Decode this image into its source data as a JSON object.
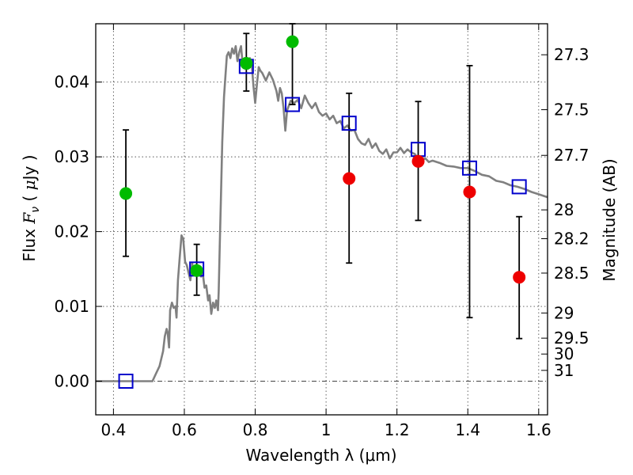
{
  "chart_data": {
    "type": "scatter",
    "title": "",
    "xlabel": "Wavelength  λ (μm)",
    "ylabel": "Flux  F_ν  ( μJy )",
    "y2label": "Magnitude (AB)",
    "xlim": [
      0.35,
      1.625
    ],
    "ylim": [
      -0.0045,
      0.0478
    ],
    "grid": true,
    "x_ticks": [
      {
        "v": 0.4,
        "label": "0.4"
      },
      {
        "v": 0.6,
        "label": "0.6"
      },
      {
        "v": 0.8,
        "label": "0.8"
      },
      {
        "v": 1.0,
        "label": "1"
      },
      {
        "v": 1.2,
        "label": "1.2"
      },
      {
        "v": 1.4,
        "label": "1.4"
      },
      {
        "v": 1.6,
        "label": "1.6"
      }
    ],
    "y_ticks": [
      {
        "v": 0.0,
        "label": "0.00"
      },
      {
        "v": 0.01,
        "label": "0.01"
      },
      {
        "v": 0.02,
        "label": "0.02"
      },
      {
        "v": 0.03,
        "label": "0.03"
      },
      {
        "v": 0.04,
        "label": "0.04"
      }
    ],
    "mag_ticks": [
      {
        "mag": 27.3,
        "label": "27.3"
      },
      {
        "mag": 27.5,
        "label": "27.5"
      },
      {
        "mag": 27.7,
        "label": "27.7"
      },
      {
        "mag": 28,
        "label": "28"
      },
      {
        "mag": 28.2,
        "label": "28.2"
      },
      {
        "mag": 28.5,
        "label": "28.5"
      },
      {
        "mag": 29,
        "label": "29"
      },
      {
        "mag": 29.5,
        "label": "29.5"
      },
      {
        "mag": 30,
        "label": "30"
      },
      {
        "mag": 31,
        "label": "31"
      }
    ],
    "colors": {
      "sed": "#808080",
      "detection": "#00bb00",
      "nondetection": "#ee0000",
      "model": "#0000cc",
      "errorbar": "#000000"
    },
    "series": [
      {
        "type": "line",
        "color": "#808080",
        "points": [
          [
            0.35,
            0.0
          ],
          [
            0.51,
            0.0
          ],
          [
            0.52,
            0.001
          ],
          [
            0.53,
            0.002
          ],
          [
            0.54,
            0.004
          ],
          [
            0.545,
            0.006
          ],
          [
            0.55,
            0.007
          ],
          [
            0.553,
            0.0065
          ],
          [
            0.557,
            0.0045
          ],
          [
            0.56,
            0.0095
          ],
          [
            0.565,
            0.0105
          ],
          [
            0.57,
            0.0098
          ],
          [
            0.575,
            0.01
          ],
          [
            0.578,
            0.0085
          ],
          [
            0.582,
            0.0135
          ],
          [
            0.587,
            0.0165
          ],
          [
            0.592,
            0.0195
          ],
          [
            0.597,
            0.019
          ],
          [
            0.602,
            0.016
          ],
          [
            0.607,
            0.0155
          ],
          [
            0.612,
            0.0145
          ],
          [
            0.617,
            0.0135
          ],
          [
            0.622,
            0.0158
          ],
          [
            0.627,
            0.0145
          ],
          [
            0.632,
            0.0155
          ],
          [
            0.638,
            0.0148
          ],
          [
            0.642,
            0.0152
          ],
          [
            0.647,
            0.014
          ],
          [
            0.652,
            0.0145
          ],
          [
            0.657,
            0.0125
          ],
          [
            0.662,
            0.0128
          ],
          [
            0.667,
            0.0108
          ],
          [
            0.671,
            0.0115
          ],
          [
            0.676,
            0.009
          ],
          [
            0.681,
            0.0105
          ],
          [
            0.686,
            0.0098
          ],
          [
            0.69,
            0.0108
          ],
          [
            0.695,
            0.0095
          ],
          [
            0.697,
            0.012
          ],
          [
            0.7,
            0.018
          ],
          [
            0.703,
            0.024
          ],
          [
            0.707,
            0.032
          ],
          [
            0.712,
            0.038
          ],
          [
            0.716,
            0.0408
          ],
          [
            0.72,
            0.0435
          ],
          [
            0.725,
            0.044
          ],
          [
            0.73,
            0.0432
          ],
          [
            0.735,
            0.0445
          ],
          [
            0.74,
            0.0438
          ],
          [
            0.745,
            0.0448
          ],
          [
            0.75,
            0.0428
          ],
          [
            0.755,
            0.044
          ],
          [
            0.76,
            0.0448
          ],
          [
            0.765,
            0.0422
          ],
          [
            0.77,
            0.0432
          ],
          [
            0.775,
            0.0428
          ],
          [
            0.78,
            0.0418
          ],
          [
            0.785,
            0.0432
          ],
          [
            0.79,
            0.0425
          ],
          [
            0.795,
            0.0395
          ],
          [
            0.8,
            0.0372
          ],
          [
            0.805,
            0.0398
          ],
          [
            0.81,
            0.042
          ],
          [
            0.815,
            0.0415
          ],
          [
            0.82,
            0.0412
          ],
          [
            0.83,
            0.0402
          ],
          [
            0.84,
            0.0413
          ],
          [
            0.85,
            0.0403
          ],
          [
            0.86,
            0.0388
          ],
          [
            0.865,
            0.0375
          ],
          [
            0.87,
            0.0392
          ],
          [
            0.875,
            0.0385
          ],
          [
            0.88,
            0.0365
          ],
          [
            0.885,
            0.0335
          ],
          [
            0.89,
            0.0362
          ],
          [
            0.9,
            0.0375
          ],
          [
            0.91,
            0.0372
          ],
          [
            0.92,
            0.0376
          ],
          [
            0.93,
            0.0365
          ],
          [
            0.94,
            0.0382
          ],
          [
            0.95,
            0.0372
          ],
          [
            0.96,
            0.0365
          ],
          [
            0.97,
            0.0372
          ],
          [
            0.98,
            0.036
          ],
          [
            0.99,
            0.0355
          ],
          [
            1.0,
            0.0358
          ],
          [
            1.01,
            0.035
          ],
          [
            1.02,
            0.0355
          ],
          [
            1.03,
            0.0345
          ],
          [
            1.04,
            0.0348
          ],
          [
            1.05,
            0.0338
          ],
          [
            1.06,
            0.0342
          ],
          [
            1.07,
            0.0335
          ],
          [
            1.08,
            0.0336
          ],
          [
            1.09,
            0.0324
          ],
          [
            1.1,
            0.0318
          ],
          [
            1.11,
            0.0316
          ],
          [
            1.12,
            0.0324
          ],
          [
            1.13,
            0.0312
          ],
          [
            1.14,
            0.0318
          ],
          [
            1.15,
            0.0308
          ],
          [
            1.16,
            0.0304
          ],
          [
            1.17,
            0.031
          ],
          [
            1.18,
            0.0298
          ],
          [
            1.19,
            0.0306
          ],
          [
            1.2,
            0.0306
          ],
          [
            1.21,
            0.0312
          ],
          [
            1.22,
            0.0305
          ],
          [
            1.23,
            0.031
          ],
          [
            1.24,
            0.0306
          ],
          [
            1.25,
            0.0304
          ],
          [
            1.26,
            0.0298
          ],
          [
            1.27,
            0.0295
          ],
          [
            1.28,
            0.0298
          ],
          [
            1.29,
            0.0293
          ],
          [
            1.3,
            0.0295
          ],
          [
            1.32,
            0.0292
          ],
          [
            1.34,
            0.0288
          ],
          [
            1.36,
            0.0287
          ],
          [
            1.38,
            0.0285
          ],
          [
            1.4,
            0.0285
          ],
          [
            1.42,
            0.0281
          ],
          [
            1.44,
            0.0276
          ],
          [
            1.46,
            0.0274
          ],
          [
            1.48,
            0.0268
          ],
          [
            1.5,
            0.0266
          ],
          [
            1.52,
            0.0262
          ],
          [
            1.54,
            0.026
          ],
          [
            1.56,
            0.0257
          ],
          [
            1.58,
            0.0253
          ],
          [
            1.6,
            0.025
          ],
          [
            1.625,
            0.0246
          ]
        ]
      },
      {
        "type": "errorbar",
        "color": "#00bb00",
        "points": [
          {
            "x": 0.435,
            "y": 0.0251,
            "lo": 0.0167,
            "hi": 0.0336
          },
          {
            "x": 0.635,
            "y": 0.0148,
            "lo": 0.0115,
            "hi": 0.0183
          },
          {
            "x": 0.775,
            "y": 0.0425,
            "lo": 0.0388,
            "hi": 0.0465
          },
          {
            "x": 0.905,
            "y": 0.0454,
            "lo": 0.037,
            "hi": 0.0478
          }
        ]
      },
      {
        "type": "errorbar",
        "color": "#ee0000",
        "points": [
          {
            "x": 1.065,
            "y": 0.0271,
            "lo": 0.0158,
            "hi": 0.0385
          },
          {
            "x": 1.26,
            "y": 0.0294,
            "lo": 0.0215,
            "hi": 0.0374
          },
          {
            "x": 1.405,
            "y": 0.0253,
            "lo": 0.0085,
            "hi": 0.0422
          },
          {
            "x": 1.545,
            "y": 0.0139,
            "lo": 0.0057,
            "hi": 0.022
          }
        ]
      },
      {
        "type": "scatter",
        "marker": "square",
        "color": "#0000cc",
        "points": [
          [
            0.435,
            0.0
          ],
          [
            0.635,
            0.015
          ],
          [
            0.775,
            0.0421
          ],
          [
            0.905,
            0.037
          ],
          [
            1.065,
            0.0345
          ],
          [
            1.26,
            0.031
          ],
          [
            1.405,
            0.0285
          ],
          [
            1.545,
            0.026
          ]
        ]
      }
    ]
  }
}
